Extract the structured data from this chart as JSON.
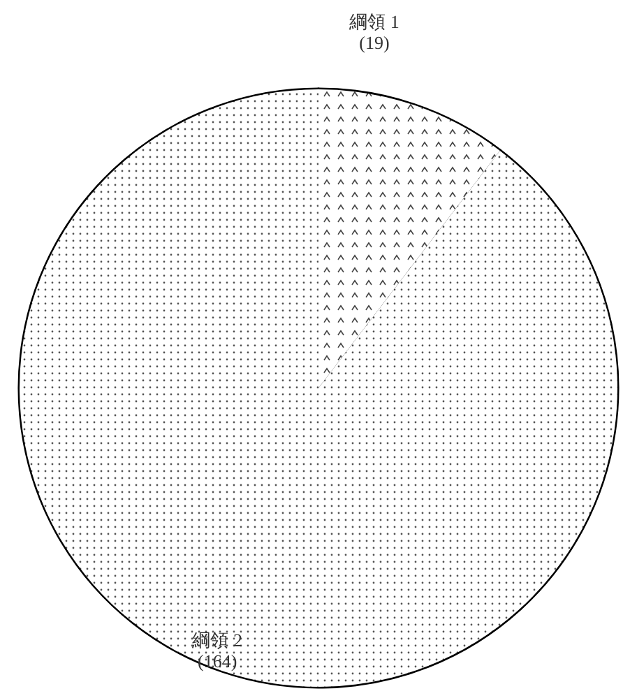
{
  "chart_data": {
    "type": "pie",
    "categories": [
      "綱領 1",
      "綱領 2"
    ],
    "values": [
      19,
      164
    ],
    "value_labels": [
      "(19)",
      "(164)"
    ],
    "colors": [
      "#ffffff",
      "#ffffff"
    ]
  }
}
